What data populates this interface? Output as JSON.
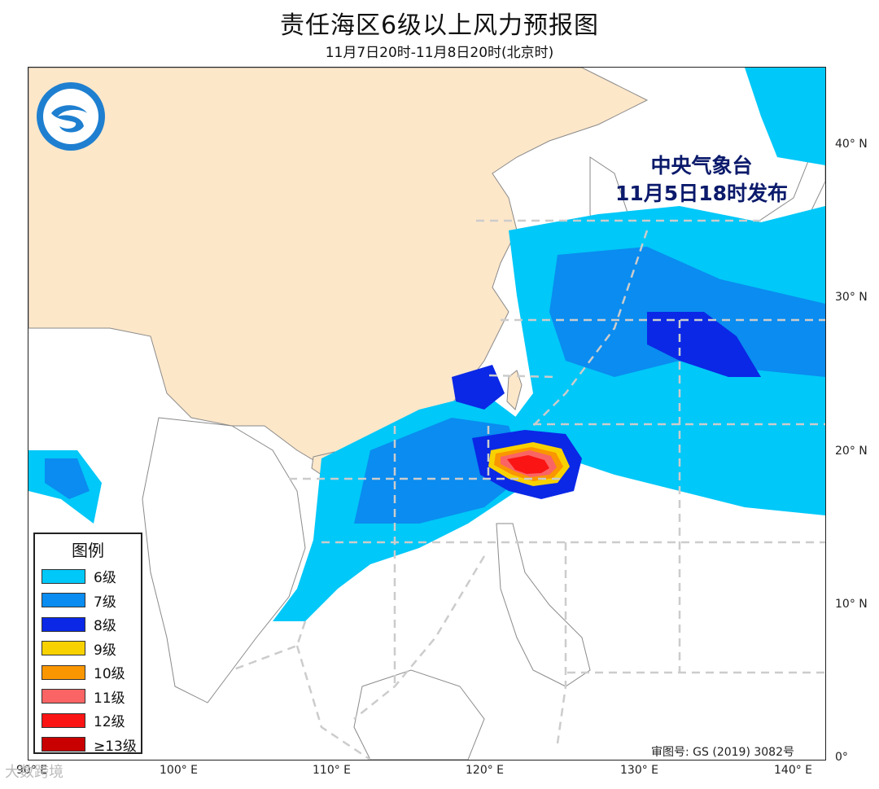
{
  "header": {
    "title": "责任海区6级以上风力预报图",
    "subtitle": "11月7日20时-11月8日20时(北京时)"
  },
  "publisher": {
    "line1": "中央气象台",
    "line2": "11月5日18时发布"
  },
  "approval_no": "审图号: GS (2019) 3082号",
  "watermark": "大数跨境",
  "logo_icon": "cma-logo-icon",
  "latitude_labels": [
    "40° N",
    "30° N",
    "20° N",
    "10° N",
    "0°"
  ],
  "longitude_labels": [
    "90° E",
    "100° E",
    "110° E",
    "120° E",
    "130° E",
    "140° E"
  ],
  "legend": {
    "title": "图例",
    "items": [
      {
        "label": "6级",
        "color": "#00c8f8"
      },
      {
        "label": "7级",
        "color": "#0a8cf0"
      },
      {
        "label": "8级",
        "color": "#0a28e6"
      },
      {
        "label": "9级",
        "color": "#f8d200"
      },
      {
        "label": "10级",
        "color": "#fa9600"
      },
      {
        "label": "11级",
        "color": "#fa6464"
      },
      {
        "label": "12级",
        "color": "#fa1414"
      },
      {
        "label": "≥13级",
        "color": "#c80000"
      }
    ]
  },
  "colors": {
    "land_china": "#fde7c9",
    "sea": "#ffffff",
    "boundary": "#7a7a7a",
    "zone_line": "#cccccc"
  }
}
